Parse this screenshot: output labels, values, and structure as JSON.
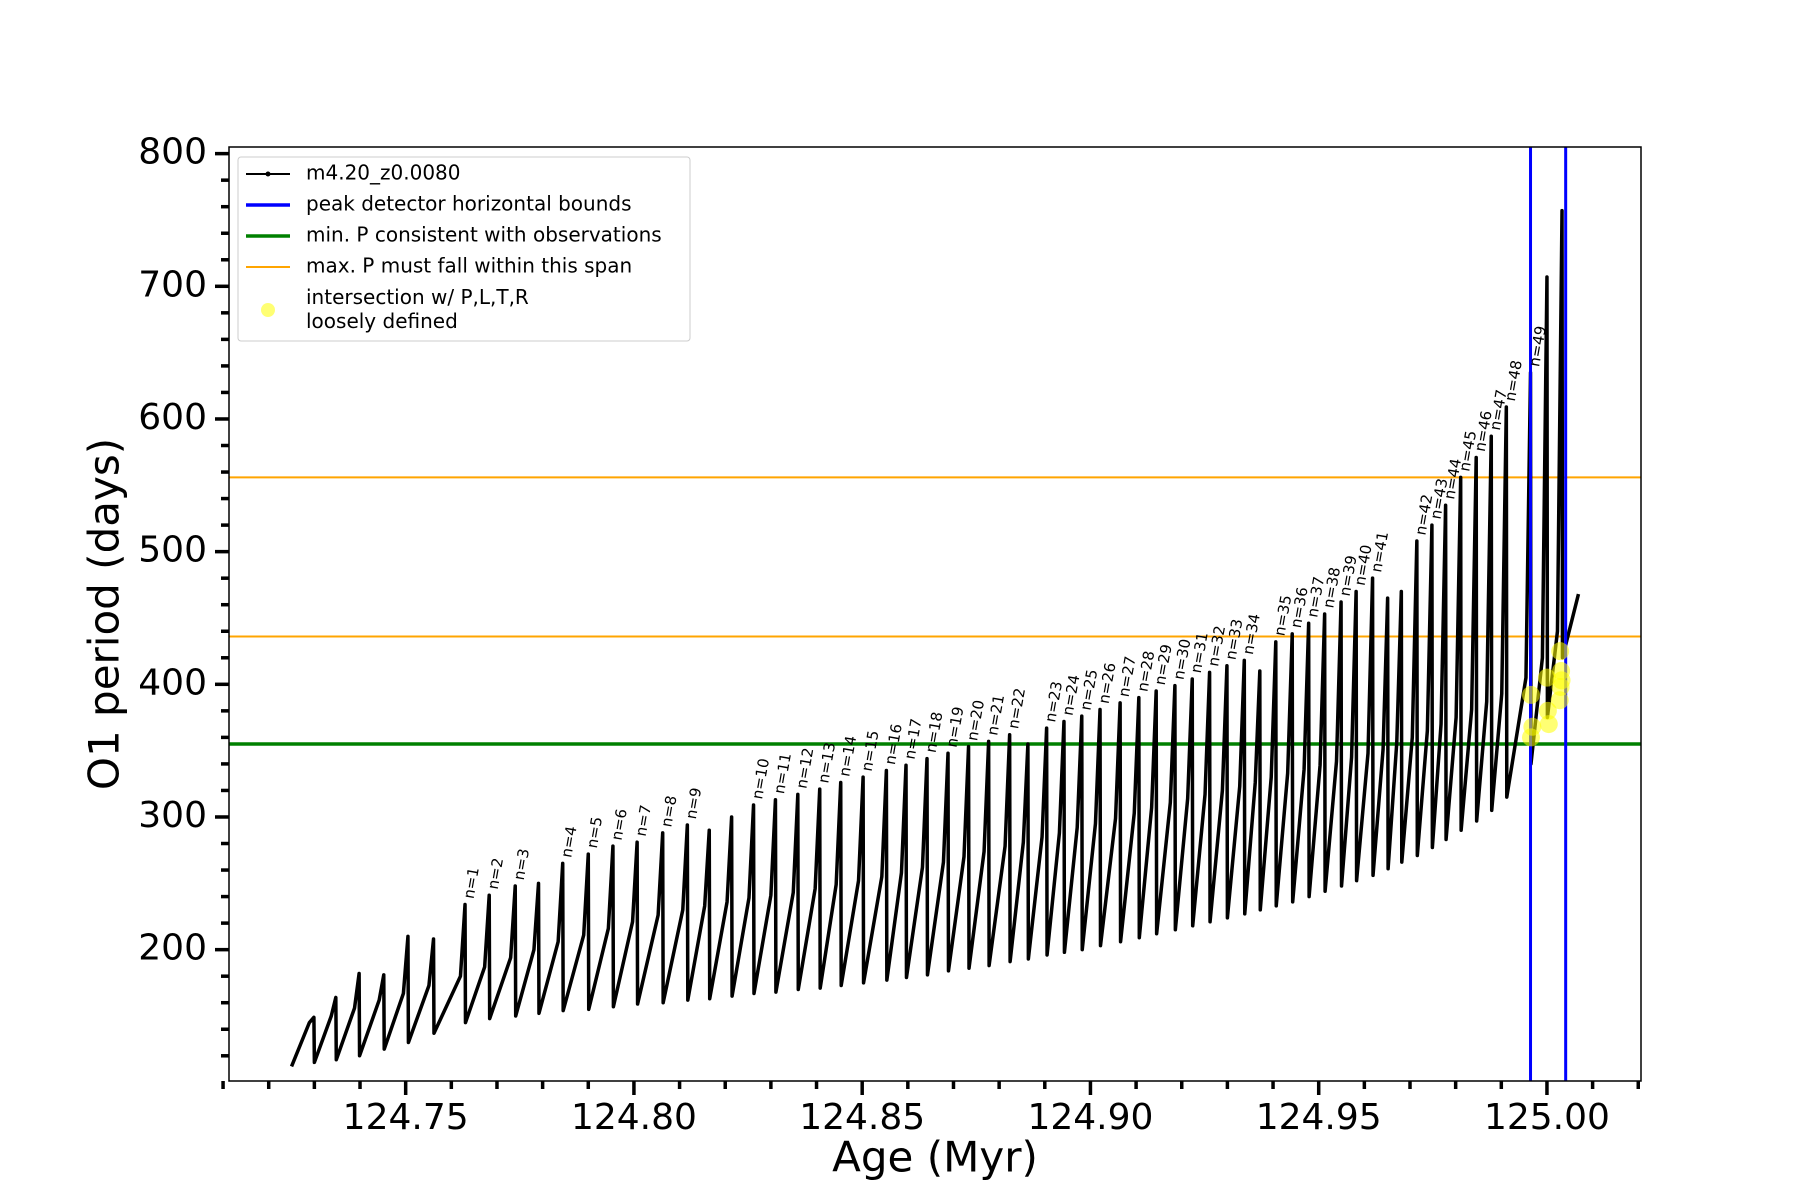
{
  "chart_data": {
    "type": "line",
    "xlabel": "Age (Myr)",
    "ylabel": "O1 period (days)",
    "xlim": [
      124.7113,
      125.0206
    ],
    "ylim": [
      101,
      805
    ],
    "xticks": [
      {
        "value": 124.75,
        "label": "124.75"
      },
      {
        "value": 124.8,
        "label": "124.80"
      },
      {
        "value": 124.85,
        "label": "124.85"
      },
      {
        "value": 124.9,
        "label": "124.90"
      },
      {
        "value": 124.95,
        "label": "124.95"
      },
      {
        "value": 125.0,
        "label": "125.00"
      }
    ],
    "xminorticks": [
      124.71,
      124.72,
      124.73,
      124.74,
      124.76,
      124.77,
      124.78,
      124.79,
      124.81,
      124.82,
      124.83,
      124.84,
      124.86,
      124.87,
      124.88,
      124.89,
      124.91,
      124.92,
      124.93,
      124.94,
      124.96,
      124.97,
      124.98,
      124.99,
      125.01,
      125.02
    ],
    "yticks": [
      200,
      300,
      400,
      500,
      600,
      700,
      800
    ],
    "yminorticks": [
      120,
      140,
      160,
      180,
      220,
      240,
      260,
      280,
      320,
      340,
      360,
      380,
      420,
      440,
      460,
      480,
      520,
      540,
      560,
      580,
      620,
      640,
      660,
      680,
      720,
      740,
      760,
      780
    ],
    "grid": false,
    "legend": "upper left",
    "series": [
      {
        "name": "m4.20_z0.0080",
        "type": "line",
        "color": "#000000",
        "x": [
          124.725,
          124.7289,
          124.7299,
          124.73,
          124.7337,
          124.7347,
          124.7348,
          124.7388,
          124.7398,
          124.7399,
          124.7442,
          124.7452,
          124.7453,
          124.7495,
          124.7505,
          124.7506,
          124.7551,
          124.7561,
          124.7562,
          124.762,
          124.763,
          124.7631,
          124.7673,
          124.7683,
          124.7684,
          124.773,
          124.774,
          124.7741,
          124.7781,
          124.7791,
          124.7792,
          124.7834,
          124.7844,
          124.7845,
          124.789,
          124.79,
          124.7901,
          124.7944,
          124.7954,
          124.7955,
          124.7997,
          124.8007,
          124.8008,
          124.8053,
          124.8063,
          124.8064,
          124.8107,
          124.8117,
          124.8118,
          124.8155,
          124.8165,
          124.8166,
          124.8204,
          124.8214,
          124.8215,
          124.8252,
          124.8262,
          124.8263,
          124.83,
          124.831,
          124.8311,
          124.8349,
          124.8359,
          124.836,
          124.8397,
          124.8407,
          124.8408,
          124.8443,
          124.8453,
          124.8454,
          124.8492,
          124.8502,
          124.8503,
          124.8543,
          124.8553,
          124.8554,
          124.8586,
          124.8596,
          124.8597,
          124.8632,
          124.8642,
          124.8643,
          124.8678,
          124.8688,
          124.8689,
          124.8723,
          124.8733,
          124.8734,
          124.8767,
          124.8777,
          124.8778,
          124.8813,
          124.8823,
          124.8824,
          124.8853,
          124.8863,
          124.8864,
          124.8894,
          124.8904,
          124.8905,
          124.8932,
          124.8942,
          124.8943,
          124.8971,
          124.8981,
          124.8982,
          124.9011,
          124.9021,
          124.9022,
          124.9055,
          124.9065,
          124.9066,
          124.9096,
          124.9106,
          124.9107,
          124.9134,
          124.9144,
          124.9145,
          124.9175,
          124.9185,
          124.9186,
          124.9213,
          124.9223,
          124.9224,
          124.9251,
          124.9261,
          124.9262,
          124.9289,
          124.9299,
          124.93,
          124.9327,
          124.9337,
          124.9338,
          124.9361,
          124.9371,
          124.9372,
          124.9396,
          124.9406,
          124.9407,
          124.9432,
          124.9442,
          124.9443,
          124.9468,
          124.9478,
          124.9479,
          124.9503,
          124.9513,
          124.9514,
          124.9539,
          124.9549,
          124.955,
          124.9572,
          124.9582,
          124.9583,
          124.9608,
          124.9618,
          124.9619,
          124.9641,
          124.9651,
          124.9652,
          124.9671,
          124.9681,
          124.9682,
          124.9705,
          124.9715,
          124.9716,
          124.9738,
          124.9748,
          124.9749,
          124.9768,
          124.9778,
          124.9779,
          124.9801,
          124.9811,
          124.9812,
          124.9835,
          124.9845,
          124.9846,
          124.9868,
          124.9878,
          124.9879,
          124.9901,
          124.9911,
          124.9912,
          124.9954,
          124.9964,
          124.9965,
          124.999,
          125.0,
          125.0001,
          125.0023,
          125.0033,
          125.0034,
          125.0069
        ],
        "values": [
          112,
          145,
          149,
          115,
          150,
          164,
          117,
          156,
          182,
          120,
          162,
          181,
          125,
          167,
          210,
          130,
          173,
          208,
          137,
          180,
          234,
          145,
          187,
          241,
          148,
          194,
          248,
          150,
          200,
          250,
          152,
          206,
          265,
          154,
          211,
          272,
          155,
          216,
          278,
          157,
          221,
          281,
          159,
          226,
          288,
          160,
          230,
          294,
          162,
          233,
          290,
          163,
          236,
          300,
          165,
          239,
          309,
          167,
          241,
          313,
          168,
          243,
          317,
          170,
          246,
          321,
          171,
          249,
          326,
          173,
          252,
          330,
          175,
          255,
          335,
          177,
          258,
          339,
          179,
          262,
          344,
          181,
          266,
          348,
          184,
          270,
          353,
          186,
          274,
          357,
          188,
          278,
          362,
          191,
          281,
          355,
          193,
          285,
          367,
          196,
          288,
          372,
          198,
          292,
          376,
          200,
          295,
          381,
          203,
          299,
          386,
          206,
          303,
          390,
          209,
          307,
          395,
          212,
          311,
          399,
          215,
          314,
          404,
          218,
          317,
          409,
          221,
          320,
          414,
          224,
          323,
          418,
          227,
          326,
          410,
          230,
          330,
          432,
          233,
          333,
          438,
          236,
          336,
          446,
          240,
          339,
          453,
          244,
          342,
          462,
          248,
          345,
          470,
          252,
          348,
          480,
          256,
          351,
          465,
          261,
          356,
          470,
          266,
          360,
          508,
          271,
          365,
          520,
          277,
          370,
          535,
          283,
          375,
          556,
          290,
          381,
          571,
          297,
          387,
          587,
          305,
          393,
          609,
          315,
          405,
          635,
          340,
          420,
          707,
          375,
          440,
          757,
          420,
          468
        ]
      },
      {
        "name": "peak detector horizontal bounds",
        "type": "vline",
        "color": "#0000ff",
        "x": [
          124.9964,
          125.0041
        ]
      },
      {
        "name": "min. P consistent with observations",
        "type": "hline",
        "color": "#008000",
        "values": [
          355
        ]
      },
      {
        "name": "max. P must fall within this span",
        "type": "hline",
        "color": "#ffa500",
        "values": [
          436,
          556
        ]
      },
      {
        "name": "intersection w/ P,L,T,R\nloosely defined",
        "type": "scatter",
        "color": "#ffff00",
        "x": [
          124.9965,
          124.9968,
          124.9965,
          125.0004,
          125.0002,
          125.0,
          125.0028,
          125.003,
          125.0031,
          125.0029,
          125.0032
        ],
        "values": [
          360,
          368,
          392,
          370,
          380,
          405,
          388,
          398,
          410,
          425,
          403
        ]
      }
    ],
    "annotations": [
      {
        "text": "n=1",
        "x": 124.763,
        "y": 234
      },
      {
        "text": "n=2",
        "x": 124.7683,
        "y": 241
      },
      {
        "text": "n=3",
        "x": 124.774,
        "y": 248
      },
      {
        "text": "n=4",
        "x": 124.7844,
        "y": 265
      },
      {
        "text": "n=5",
        "x": 124.79,
        "y": 272
      },
      {
        "text": "n=6",
        "x": 124.7954,
        "y": 278
      },
      {
        "text": "n=7",
        "x": 124.8007,
        "y": 281
      },
      {
        "text": "n=8",
        "x": 124.8063,
        "y": 288
      },
      {
        "text": "n=9",
        "x": 124.8117,
        "y": 294
      },
      {
        "text": "n=10",
        "x": 124.8262,
        "y": 309
      },
      {
        "text": "n=11",
        "x": 124.831,
        "y": 313
      },
      {
        "text": "n=12",
        "x": 124.8359,
        "y": 317
      },
      {
        "text": "n=13",
        "x": 124.8407,
        "y": 321
      },
      {
        "text": "n=14",
        "x": 124.8453,
        "y": 326
      },
      {
        "text": "n=15",
        "x": 124.8502,
        "y": 330
      },
      {
        "text": "n=16",
        "x": 124.8553,
        "y": 335
      },
      {
        "text": "n=17",
        "x": 124.8596,
        "y": 339
      },
      {
        "text": "n=18",
        "x": 124.8642,
        "y": 344
      },
      {
        "text": "n=19",
        "x": 124.8688,
        "y": 348
      },
      {
        "text": "n=20",
        "x": 124.8733,
        "y": 353
      },
      {
        "text": "n=21",
        "x": 124.8777,
        "y": 357
      },
      {
        "text": "n=22",
        "x": 124.8823,
        "y": 362
      },
      {
        "text": "n=23",
        "x": 124.8904,
        "y": 367
      },
      {
        "text": "n=24",
        "x": 124.8942,
        "y": 372
      },
      {
        "text": "n=25",
        "x": 124.8981,
        "y": 376
      },
      {
        "text": "n=26",
        "x": 124.9021,
        "y": 381
      },
      {
        "text": "n=27",
        "x": 124.9065,
        "y": 386
      },
      {
        "text": "n=28",
        "x": 124.9106,
        "y": 390
      },
      {
        "text": "n=29",
        "x": 124.9144,
        "y": 395
      },
      {
        "text": "n=30",
        "x": 124.9185,
        "y": 399
      },
      {
        "text": "n=31",
        "x": 124.9223,
        "y": 404
      },
      {
        "text": "n=32",
        "x": 124.9261,
        "y": 409
      },
      {
        "text": "n=33",
        "x": 124.9299,
        "y": 414
      },
      {
        "text": "n=34",
        "x": 124.9337,
        "y": 418
      },
      {
        "text": "n=35",
        "x": 124.9406,
        "y": 432
      },
      {
        "text": "n=36",
        "x": 124.9442,
        "y": 438
      },
      {
        "text": "n=37",
        "x": 124.9478,
        "y": 446
      },
      {
        "text": "n=38",
        "x": 124.9513,
        "y": 453
      },
      {
        "text": "n=39",
        "x": 124.9549,
        "y": 462
      },
      {
        "text": "n=40",
        "x": 124.9582,
        "y": 470
      },
      {
        "text": "n=41",
        "x": 124.9618,
        "y": 480
      },
      {
        "text": "n=42",
        "x": 124.9715,
        "y": 508
      },
      {
        "text": "n=43",
        "x": 124.9748,
        "y": 520
      },
      {
        "text": "n=44",
        "x": 124.9778,
        "y": 535
      },
      {
        "text": "n=45",
        "x": 124.9811,
        "y": 556
      },
      {
        "text": "n=46",
        "x": 124.9845,
        "y": 571
      },
      {
        "text": "n=47",
        "x": 124.9878,
        "y": 587
      },
      {
        "text": "n=48",
        "x": 124.9911,
        "y": 609
      },
      {
        "text": "n=49",
        "x": 124.9964,
        "y": 635
      }
    ]
  }
}
